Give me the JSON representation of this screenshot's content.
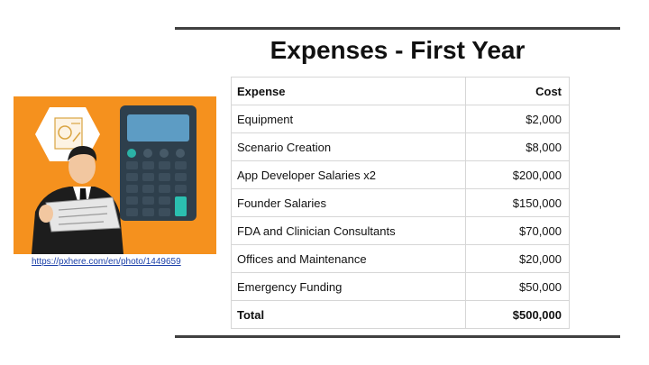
{
  "title": "Expenses - First Year",
  "credit_link": "https://pxhere.com/en/photo/1449659",
  "table": {
    "headers": {
      "expense": "Expense",
      "cost": "Cost"
    },
    "rows": [
      {
        "expense": "Equipment",
        "cost": "$2,000"
      },
      {
        "expense": "Scenario Creation",
        "cost": "$8,000"
      },
      {
        "expense": "App Developer Salaries x2",
        "cost": "$200,000"
      },
      {
        "expense": "Founder Salaries",
        "cost": "$150,000"
      },
      {
        "expense": "FDA and Clinician Consultants",
        "cost": "$70,000"
      },
      {
        "expense": "Offices and Maintenance",
        "cost": "$20,000"
      },
      {
        "expense": "Emergency Funding",
        "cost": "$50,000"
      }
    ],
    "total": {
      "expense": "Total",
      "cost": "$500,000"
    }
  },
  "colors": {
    "illustration_background": "#f5911e",
    "calculator": "#2e3f4c",
    "calculator_screen": "#5d9cc4",
    "accent_key": "#2bbfb0"
  }
}
